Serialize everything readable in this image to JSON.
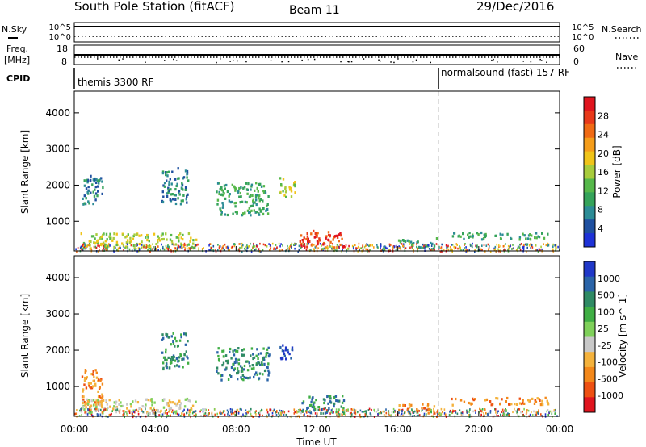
{
  "header": {
    "station": "South Pole Station (fitACF)",
    "beam": "Beam 11",
    "date": "29/Dec/2016"
  },
  "strip_panels": {
    "nsky_label": "N.Sky",
    "nsearch_label": "N.Search",
    "noise_ticks": [
      "10^5",
      "10^0"
    ],
    "freq_label_line1": "Freq.",
    "freq_label_line2": "[MHz]",
    "freq_ticks": [
      "18",
      "8"
    ],
    "nave_label": "Nave",
    "nave_ticks": [
      "60",
      "0"
    ],
    "cpid_label": "CPID",
    "cpid_segments": [
      {
        "label": "themis 3300 RF",
        "start_hour": 0
      },
      {
        "label": "normalsound (fast) 157 RF",
        "start_hour": 18
      }
    ]
  },
  "colors": {
    "power": [
      "#1e32d7",
      "#1f50a0",
      "#2c8c96",
      "#35a35a",
      "#56b84a",
      "#a8cc3c",
      "#f0c419",
      "#f59d1a",
      "#f06a14",
      "#e8391a",
      "#e0141e"
    ],
    "velocity": [
      "#e0141e",
      "#ee5012",
      "#f3881a",
      "#f4b23c",
      "#c8c8c8",
      "#7fd05a",
      "#3fae44",
      "#2f8a64",
      "#2a64a8",
      "#2038c8"
    ]
  },
  "chart_data": [
    {
      "type": "heatmap",
      "name": "power",
      "ylabel": "Slant Range [km]",
      "yticks": [
        1000,
        2000,
        3000,
        4000
      ],
      "ylim": [
        180,
        4600
      ],
      "xlim": [
        0,
        24
      ],
      "colorbar_label": "Power [dB]",
      "colorbar_ticks": [
        4,
        8,
        12,
        16,
        20,
        24,
        28
      ],
      "colorbar_range": [
        0,
        32
      ],
      "regions": [
        {
          "t0": 11.1,
          "t1": 13.3,
          "r0": 290,
          "r1": 780,
          "level": 9
        },
        {
          "t0": 10.1,
          "t1": 10.9,
          "r0": 1700,
          "r1": 2250,
          "level": 5
        },
        {
          "t0": 16.0,
          "t1": 17.9,
          "r0": 300,
          "r1": 560,
          "level": 3
        },
        {
          "t0": 18.6,
          "t1": 23.4,
          "r0": 520,
          "r1": 720,
          "level": 3
        },
        {
          "t0": 0.3,
          "t1": 1.4,
          "r0": 1500,
          "r1": 2300,
          "level": 2
        },
        {
          "t0": 4.3,
          "t1": 5.6,
          "r0": 1500,
          "r1": 2500,
          "level": 2
        },
        {
          "t0": 0.3,
          "t1": 6.0,
          "r0": 280,
          "r1": 700,
          "level": 5
        },
        {
          "t0": 7.0,
          "t1": 9.6,
          "r0": 1200,
          "r1": 2100,
          "level": 3
        }
      ]
    },
    {
      "type": "heatmap",
      "name": "velocity",
      "ylabel": "Slant Range [km]",
      "yticks": [
        1000,
        2000,
        3000,
        4000
      ],
      "ylim": [
        180,
        4600
      ],
      "xlim": [
        0,
        24
      ],
      "xlabel": "Time UT",
      "xticks": [
        "00:00",
        "04:00",
        "08:00",
        "12:00",
        "16:00",
        "20:00",
        "00:00"
      ],
      "colorbar_label": "Velocity [m s^-1]",
      "colorbar_ticks": [
        -1000,
        -500,
        -100,
        -25,
        25,
        100,
        500,
        1000
      ],
      "regions": [
        {
          "t0": 11.1,
          "t1": 13.3,
          "r0": 290,
          "r1": 780,
          "level": 7
        },
        {
          "t0": 10.1,
          "t1": 10.9,
          "r0": 1750,
          "r1": 2200,
          "level": 9
        },
        {
          "t0": 16.0,
          "t1": 17.9,
          "r0": 300,
          "r1": 560,
          "level": 2
        },
        {
          "t0": 18.6,
          "t1": 23.4,
          "r0": 520,
          "r1": 720,
          "level": 2
        },
        {
          "t0": 0.3,
          "t1": 1.4,
          "r0": 500,
          "r1": 1500,
          "level": 2
        },
        {
          "t0": 4.3,
          "t1": 5.6,
          "r0": 1500,
          "r1": 2500,
          "level": 7
        },
        {
          "t0": 0.3,
          "t1": 6.0,
          "r0": 280,
          "r1": 700,
          "level": 4
        },
        {
          "t0": 7.0,
          "t1": 9.6,
          "r0": 1200,
          "r1": 2100,
          "level": 7
        }
      ]
    }
  ]
}
